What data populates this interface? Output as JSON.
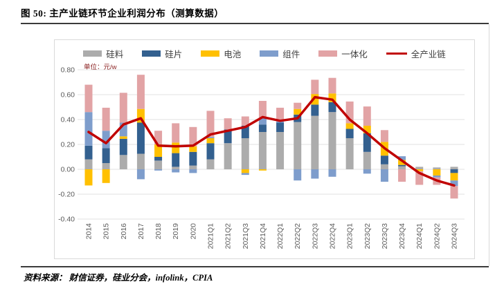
{
  "figure": {
    "title": "图 50:  主产业链环节企业利润分布（测算数据）",
    "unit_label": "单位：元/w",
    "source": "资料来源：  财信证券，硅业分会，infolink，CPIA"
  },
  "colors": {
    "silicon_material": "#acacac",
    "wafer": "#33608f",
    "cell": "#ffc000",
    "module": "#7e9dcc",
    "integrated": "#e2a3a5",
    "full_chain_line": "#c00000",
    "grid": "#e2e2e2",
    "axis_text": "#595959",
    "chart_border": "#d9d9d9",
    "divider_rule": "#3a3a3a",
    "unit_text": "#8b2020"
  },
  "chart_data": {
    "type": "bar",
    "subtype": "stacked-bar-with-line",
    "title": "主产业链环节企业利润分布（测算数据）",
    "xlabel": "",
    "ylabel": "单位：元/w",
    "ylim": [
      -0.4,
      0.8
    ],
    "ytick_step": 0.2,
    "ytick_labels": [
      "0.80",
      "0.60",
      "0.40",
      "0.20",
      "0.00",
      "-0.20",
      "-0.40"
    ],
    "grid": true,
    "legend_position": "top",
    "categories": [
      "2014",
      "2015",
      "2016",
      "2017",
      "2018",
      "2019",
      "2020",
      "2021Q1",
      "2021Q2",
      "2021Q3",
      "2021Q4",
      "2022Q1",
      "2022Q2",
      "2022Q3",
      "2022Q4",
      "2023Q1",
      "2023Q2",
      "2023Q3",
      "2023Q4",
      "2024Q1",
      "2024Q2",
      "2024Q3"
    ],
    "series": [
      {
        "name": "硅料",
        "type": "bar",
        "color": "#acacac",
        "values": [
          0.08,
          0.05,
          0.115,
          0.125,
          0.07,
          0.02,
          0.03,
          0.08,
          0.21,
          0.25,
          0.3,
          0.3,
          0.38,
          0.43,
          0.46,
          0.25,
          0.14,
          0.04,
          0.025,
          0.02,
          0.015,
          0.02
        ]
      },
      {
        "name": "硅片",
        "type": "bar",
        "color": "#33608f",
        "values": [
          0.11,
          0.12,
          0.13,
          0.25,
          0.03,
          0.11,
          0.11,
          0.13,
          0.11,
          0.1,
          0.06,
          0.075,
          0.06,
          0.09,
          0.08,
          0.075,
          0.15,
          0.07,
          0.01,
          0.0,
          0.0,
          -0.03
        ]
      },
      {
        "name": "电池",
        "type": "bar",
        "color": "#ffc000",
        "values": [
          -0.13,
          -0.11,
          0.02,
          0.11,
          0.1,
          0.085,
          0.045,
          0.04,
          0.0,
          -0.03,
          -0.01,
          0.0,
          0.045,
          0.085,
          0.07,
          0.045,
          0.06,
          0.11,
          0.04,
          -0.015,
          -0.05,
          -0.06
        ]
      },
      {
        "name": "组件",
        "type": "bar",
        "color": "#7e9dcc",
        "values": [
          0.27,
          0.14,
          0.11,
          -0.08,
          -0.01,
          -0.025,
          -0.03,
          0.01,
          0.0,
          -0.015,
          0.055,
          0.01,
          -0.09,
          -0.075,
          -0.06,
          0.0,
          -0.035,
          -0.1,
          0.03,
          0.0,
          -0.015,
          -0.045
        ]
      },
      {
        "name": "一体化",
        "type": "bar",
        "color": "#e2a3a5",
        "values": [
          0.22,
          0.185,
          0.24,
          0.275,
          0.11,
          0.155,
          0.155,
          0.21,
          0.09,
          0.075,
          0.135,
          0.11,
          0.05,
          0.115,
          0.125,
          0.175,
          0.155,
          0.095,
          -0.1,
          -0.11,
          -0.06,
          -0.1
        ]
      },
      {
        "name": "全产业链",
        "type": "line",
        "color": "#c00000",
        "values": [
          0.3,
          0.21,
          0.36,
          0.41,
          0.19,
          0.185,
          0.19,
          0.28,
          0.31,
          0.34,
          0.42,
          0.39,
          0.41,
          0.58,
          0.56,
          0.4,
          0.29,
          0.17,
          0.07,
          -0.03,
          -0.09,
          -0.13
        ]
      }
    ]
  }
}
